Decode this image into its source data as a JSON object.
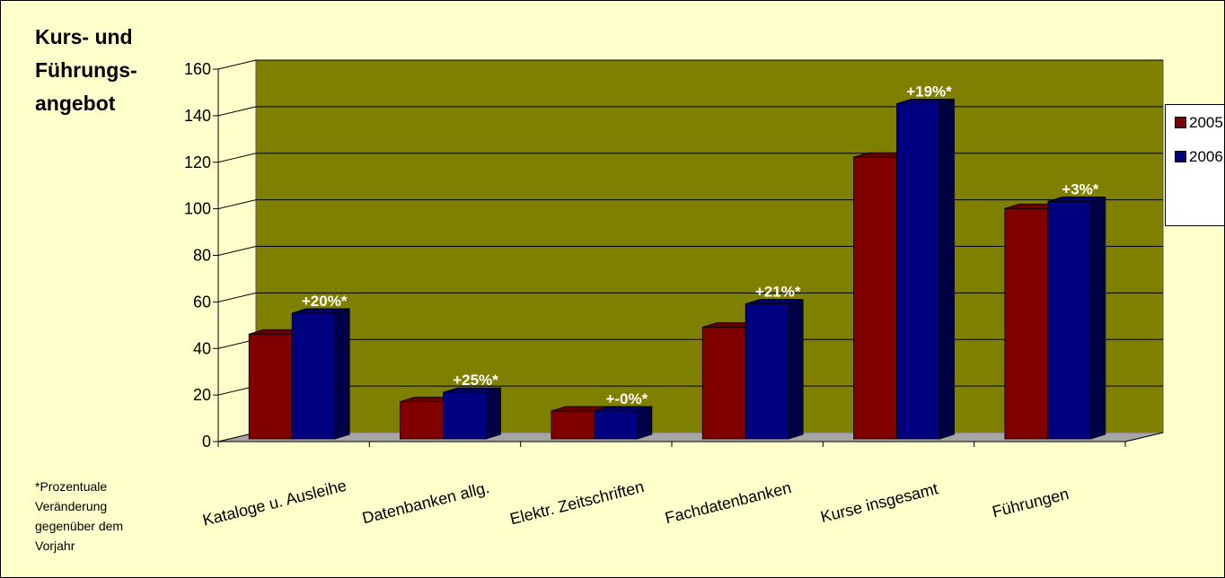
{
  "title": "Kurs- und Führungs-angebot",
  "footnote": "*Prozentuale Veränderung gegenüber dem Vorjahr",
  "colors": {
    "background": "#ffffcc",
    "plot_back": "#808000",
    "plot_floor": "#a6a6a6",
    "series_2005": "#800000",
    "series_2006": "#000080"
  },
  "chart_data": {
    "type": "bar",
    "title": "Kurs- und Führungs-angebot",
    "xlabel": "",
    "ylabel": "",
    "ylim": [
      0,
      160
    ],
    "yticks": [
      0,
      20,
      40,
      60,
      80,
      100,
      120,
      140,
      160
    ],
    "grid": true,
    "legend_position": "right",
    "categories": [
      "Kataloge u. Ausleihe",
      "Datenbanken allg.",
      "Elektr. Zeitschriften",
      "Fachdatenbanken",
      "Kurse insgesamt",
      "Führungen"
    ],
    "series": [
      {
        "name": "2005",
        "color": "#800000",
        "values": [
          45,
          16,
          12,
          48,
          121,
          99
        ]
      },
      {
        "name": "2006",
        "color": "#000080",
        "values": [
          54,
          20,
          12,
          58,
          144,
          102
        ]
      }
    ],
    "annotations": [
      "+20%*",
      "+25%*",
      "+-0%*",
      "+21%*",
      "+19%*",
      "+3%*"
    ]
  }
}
